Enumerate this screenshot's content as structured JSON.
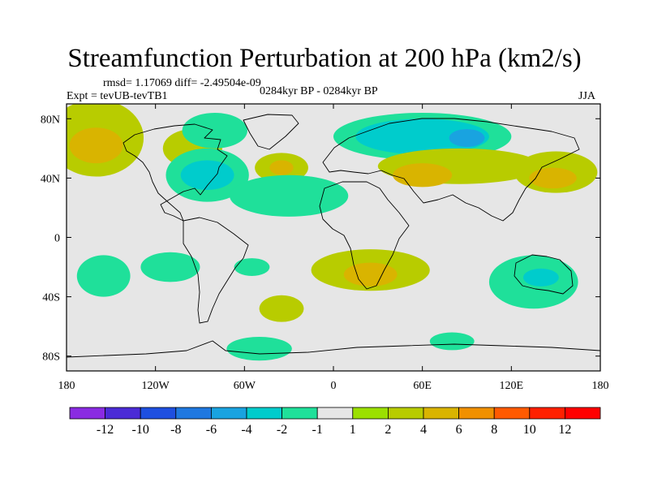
{
  "title": "Streamfunction Perturbation at 200 hPa (km2/s)",
  "stats": "rmsd= 1.17069 diff= -2.49504e-09",
  "experiment": "Expt = tevUB-tevTB1",
  "period": "0284kyr BP - 0284kyr BP",
  "season": "JJA",
  "axes": {
    "lon_ticks": [
      {
        "lon": -180,
        "label": "180"
      },
      {
        "lon": -120,
        "label": "120W"
      },
      {
        "lon": -60,
        "label": "60W"
      },
      {
        "lon": 0,
        "label": "0"
      },
      {
        "lon": 60,
        "label": "60E"
      },
      {
        "lon": 120,
        "label": "120E"
      },
      {
        "lon": 180,
        "label": "180"
      }
    ],
    "lat_ticks": [
      {
        "lat": 80,
        "label": "80N"
      },
      {
        "lat": 40,
        "label": "40N"
      },
      {
        "lat": 0,
        "label": "0"
      },
      {
        "lat": -40,
        "label": "40S"
      },
      {
        "lat": -80,
        "label": "80S"
      }
    ],
    "lon_range": [
      -180,
      180
    ],
    "lat_range": [
      -90,
      90
    ]
  },
  "colorbar": {
    "labels": [
      "-12",
      "-10",
      "-8",
      "-6",
      "-4",
      "-2",
      "-1",
      "1",
      "2",
      "4",
      "6",
      "8",
      "10",
      "12"
    ],
    "colors": [
      "#8a2be2",
      "#4b2bd6",
      "#1e4fe0",
      "#1f78e0",
      "#19a3e0",
      "#00cccc",
      "#1fe09a",
      "#e6e6e6",
      "#9be000",
      "#b8cc00",
      "#d9b400",
      "#f09000",
      "#ff5a00",
      "#ff2000",
      "#ff0000"
    ]
  },
  "field": {
    "background_color": "#e6e6e6",
    "regions": [
      {
        "lon": -160,
        "lat": 67,
        "rlon": 32,
        "rlat": 26,
        "level": "2"
      },
      {
        "lon": -160,
        "lat": 62,
        "rlon": 18,
        "rlat": 12,
        "level": "4"
      },
      {
        "lon": -95,
        "lat": 60,
        "rlon": 20,
        "rlat": 13,
        "level": "2"
      },
      {
        "lon": -80,
        "lat": 72,
        "rlon": 22,
        "rlat": 12,
        "level": "-2"
      },
      {
        "lon": -85,
        "lat": 42,
        "rlon": 28,
        "rlat": 18,
        "level": "-2"
      },
      {
        "lon": -85,
        "lat": 42,
        "rlon": 18,
        "rlat": 10,
        "level": "-4"
      },
      {
        "lon": -35,
        "lat": 47,
        "rlon": 18,
        "rlat": 10,
        "level": "2"
      },
      {
        "lon": -35,
        "lat": 47,
        "rlon": 8,
        "rlat": 5,
        "level": "4"
      },
      {
        "lon": -30,
        "lat": 28,
        "rlon": 40,
        "rlat": 14,
        "level": "-2"
      },
      {
        "lon": 60,
        "lat": 68,
        "rlon": 60,
        "rlat": 16,
        "level": "-2"
      },
      {
        "lon": 60,
        "lat": 68,
        "rlon": 45,
        "rlat": 12,
        "level": "-4"
      },
      {
        "lon": 90,
        "lat": 67,
        "rlon": 12,
        "rlat": 6,
        "level": "-6"
      },
      {
        "lon": 85,
        "lat": 48,
        "rlon": 55,
        "rlat": 12,
        "level": "2"
      },
      {
        "lon": 60,
        "lat": 42,
        "rlon": 20,
        "rlat": 8,
        "level": "4"
      },
      {
        "lon": 150,
        "lat": 44,
        "rlon": 28,
        "rlat": 14,
        "level": "2"
      },
      {
        "lon": 148,
        "lat": 40,
        "rlon": 16,
        "rlat": 7,
        "level": "4"
      },
      {
        "lon": -155,
        "lat": -26,
        "rlon": 18,
        "rlat": 14,
        "level": "-2"
      },
      {
        "lon": -110,
        "lat": -20,
        "rlon": 20,
        "rlat": 10,
        "level": "-2"
      },
      {
        "lon": -55,
        "lat": -20,
        "rlon": 12,
        "rlat": 6,
        "level": "-2"
      },
      {
        "lon": -35,
        "lat": -48,
        "rlon": 15,
        "rlat": 9,
        "level": "2"
      },
      {
        "lon": 25,
        "lat": -22,
        "rlon": 40,
        "rlat": 14,
        "level": "2"
      },
      {
        "lon": 25,
        "lat": -25,
        "rlon": 18,
        "rlat": 8,
        "level": "4"
      },
      {
        "lon": -50,
        "lat": -75,
        "rlon": 22,
        "rlat": 8,
        "level": "-2"
      },
      {
        "lon": 80,
        "lat": -70,
        "rlon": 15,
        "rlat": 6,
        "level": "-2"
      },
      {
        "lon": 135,
        "lat": -30,
        "rlon": 30,
        "rlat": 18,
        "level": "-2"
      },
      {
        "lon": 140,
        "lat": -27,
        "rlon": 12,
        "rlat": 6,
        "level": "-4"
      }
    ]
  }
}
